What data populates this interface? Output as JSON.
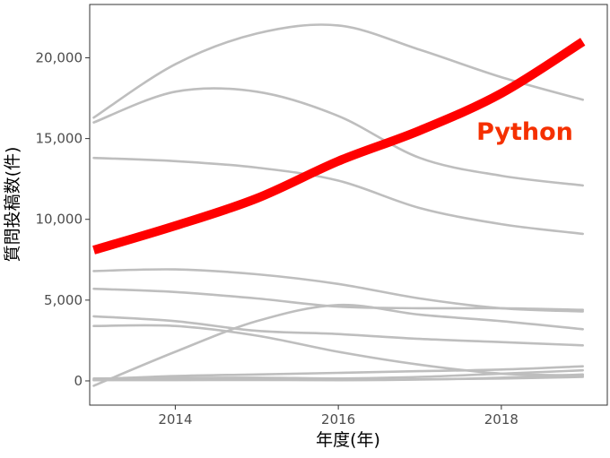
{
  "chart_data": {
    "type": "line",
    "xlabel": "年度(年)",
    "ylabel": "質問投稿数(件)",
    "xlim": [
      2012.95,
      2019.3
    ],
    "ylim": [
      -1500,
      23300
    ],
    "x_ticks": [
      2014,
      2016,
      2018
    ],
    "x_tick_labels": [
      "2014",
      "2016",
      "2018"
    ],
    "y_ticks": [
      0,
      5000,
      10000,
      15000,
      20000
    ],
    "y_tick_labels": [
      "0",
      "5,000",
      "10,000",
      "15,000",
      "20,000"
    ],
    "grid": false,
    "legend": "none",
    "x": [
      2013,
      2014,
      2015,
      2016,
      2017,
      2018,
      2019
    ],
    "highlight": {
      "name": "Python",
      "label": "Python",
      "color": "#ff0000",
      "label_color": "#f53000",
      "values": [
        8100,
        9600,
        11300,
        13600,
        15500,
        17800,
        21000
      ]
    },
    "other_color": "#bebebe",
    "series": [
      {
        "values": [
          16300,
          19600,
          21500,
          22000,
          20500,
          18800,
          17400
        ]
      },
      {
        "values": [
          16000,
          17900,
          17900,
          16400,
          13800,
          12700,
          12100
        ]
      },
      {
        "values": [
          13800,
          13600,
          13200,
          12400,
          10700,
          9700,
          9100
        ]
      },
      {
        "values": [
          6800,
          6900,
          6600,
          6000,
          5100,
          4500,
          4300
        ]
      },
      {
        "values": [
          5700,
          5500,
          5100,
          4600,
          4500,
          4500,
          4400
        ]
      },
      {
        "values": [
          4000,
          3700,
          3100,
          2900,
          2600,
          2400,
          2200
        ]
      },
      {
        "values": [
          3400,
          3400,
          2800,
          1800,
          1000,
          450,
          350
        ]
      },
      {
        "values": [
          -300,
          1800,
          3700,
          4700,
          4100,
          3700,
          3200
        ]
      },
      {
        "values": [
          100,
          300,
          400,
          500,
          600,
          700,
          900
        ]
      },
      {
        "values": [
          150,
          180,
          200,
          150,
          250,
          450,
          650
        ]
      },
      {
        "values": [
          50,
          100,
          80,
          50,
          80,
          200,
          400
        ]
      },
      {
        "values": [
          50,
          50,
          60,
          50,
          100,
          150,
          250
        ]
      }
    ]
  }
}
